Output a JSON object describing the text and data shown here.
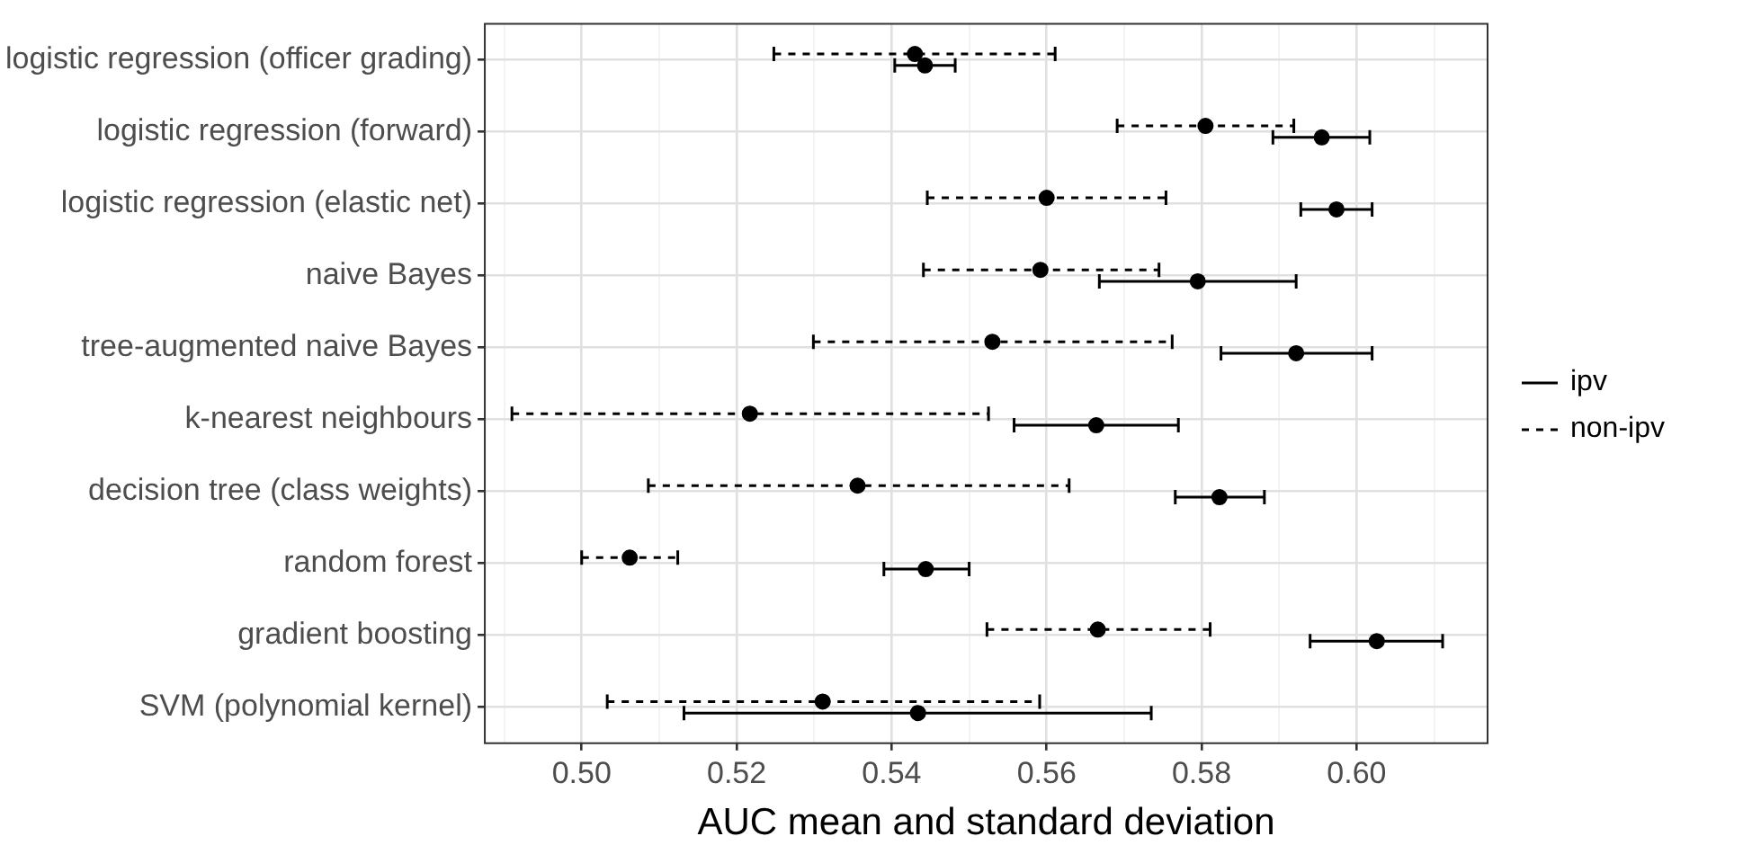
{
  "chart_data": {
    "type": "scatter",
    "orientation": "horizontal",
    "xlabel": "AUC mean and standard deviation",
    "categories": [
      "logistic regression (officer grading)",
      "logistic regression (forward)",
      "logistic regression (elastic net)",
      "naive Bayes",
      "tree-augmented naive Bayes",
      "k-nearest neighbours",
      "decision tree (class weights)",
      "random forest",
      "gradient boosting",
      "SVM (polynomial kernel)"
    ],
    "series": [
      {
        "name": "ipv",
        "color": "#000000",
        "line_style": "solid",
        "values": [
          0.5443,
          0.5955,
          0.5974,
          0.5795,
          0.5922,
          0.5664,
          0.5823,
          0.5444,
          0.6026,
          0.5434
        ],
        "errors": [
          [
            0.5404,
            0.5482
          ],
          [
            0.5892,
            0.6017
          ],
          [
            0.5928,
            0.602
          ],
          [
            0.5668,
            0.5922
          ],
          [
            0.5825,
            0.602
          ],
          [
            0.5558,
            0.577
          ],
          [
            0.5766,
            0.5881
          ],
          [
            0.539,
            0.55
          ],
          [
            0.594,
            0.6111
          ],
          [
            0.5132,
            0.5735
          ]
        ]
      },
      {
        "name": "non-ipv",
        "color": "#000000",
        "line_style": "dashed",
        "values": [
          0.543,
          0.5805,
          0.56,
          0.5592,
          0.553,
          0.5217,
          0.5356,
          0.5062,
          0.5666,
          0.5311
        ],
        "errors": [
          [
            0.5248,
            0.5611
          ],
          [
            0.5691,
            0.5919
          ],
          [
            0.5446,
            0.5754
          ],
          [
            0.5441,
            0.5745
          ],
          [
            0.5299,
            0.5762
          ],
          [
            0.491,
            0.5525
          ],
          [
            0.5086,
            0.5629
          ],
          [
            0.5,
            0.5124
          ],
          [
            0.5523,
            0.5811
          ],
          [
            0.5033,
            0.5591
          ]
        ]
      }
    ],
    "xlim": [
      0.4875,
      0.6169
    ],
    "xticks": [
      {
        "value": 0.49,
        "label": null
      },
      {
        "value": 0.5,
        "label": "0.50"
      },
      {
        "value": 0.51,
        "label": null
      },
      {
        "value": 0.52,
        "label": "0.52"
      },
      {
        "value": 0.53,
        "label": null
      },
      {
        "value": 0.54,
        "label": "0.54"
      },
      {
        "value": 0.55,
        "label": null
      },
      {
        "value": 0.56,
        "label": "0.56"
      },
      {
        "value": 0.57,
        "label": null
      },
      {
        "value": 0.58,
        "label": "0.58"
      },
      {
        "value": 0.59,
        "label": null
      },
      {
        "value": 0.6,
        "label": "0.60"
      },
      {
        "value": 0.61,
        "label": null
      }
    ],
    "grid": true,
    "legend": "right",
    "marker": "circle"
  }
}
